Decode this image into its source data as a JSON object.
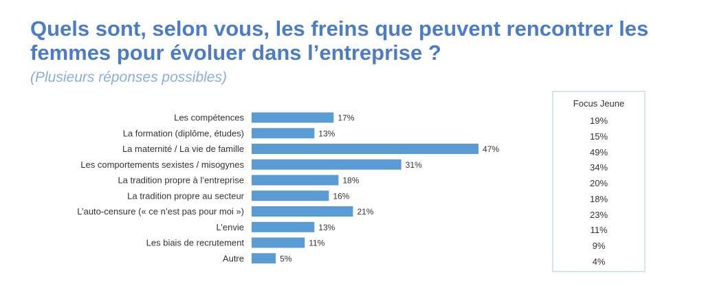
{
  "title": "Quels sont, selon vous, les freins que peuvent rencontrer les femmes pour évoluer dans l’entreprise ?",
  "subtitle": "(Plusieurs réponses possibles)",
  "colors": {
    "title": "#4a7cc9",
    "subtitle": "#8aaee0",
    "bar": "#5b9bd5",
    "box_border": "#cfe8ef"
  },
  "chart_data": {
    "type": "bar",
    "orientation": "horizontal",
    "categories": [
      "Les compétences",
      "La formation (diplôme, études)",
      "La maternité / La vie de famille",
      "Les comportements sexistes / misogynes",
      "La tradition propre à l’entreprise",
      "La tradition propre au secteur",
      "L’auto-censure (« ce n’est pas pour moi »)",
      "L’envie",
      "Les biais de recrutement",
      "Autre"
    ],
    "values": [
      17,
      13,
      47,
      31,
      18,
      16,
      21,
      13,
      11,
      5
    ],
    "value_labels": [
      "17%",
      "13%",
      "47%",
      "31%",
      "18%",
      "16%",
      "21%",
      "13%",
      "11%",
      "5%"
    ],
    "unit": "%",
    "xlim": [
      0,
      47
    ],
    "grid": false,
    "focus": {
      "header": "Focus Jeune",
      "values": [
        "19%",
        "15%",
        "49%",
        "34%",
        "20%",
        "18%",
        "23%",
        "11%",
        "9%",
        "4%"
      ]
    }
  }
}
